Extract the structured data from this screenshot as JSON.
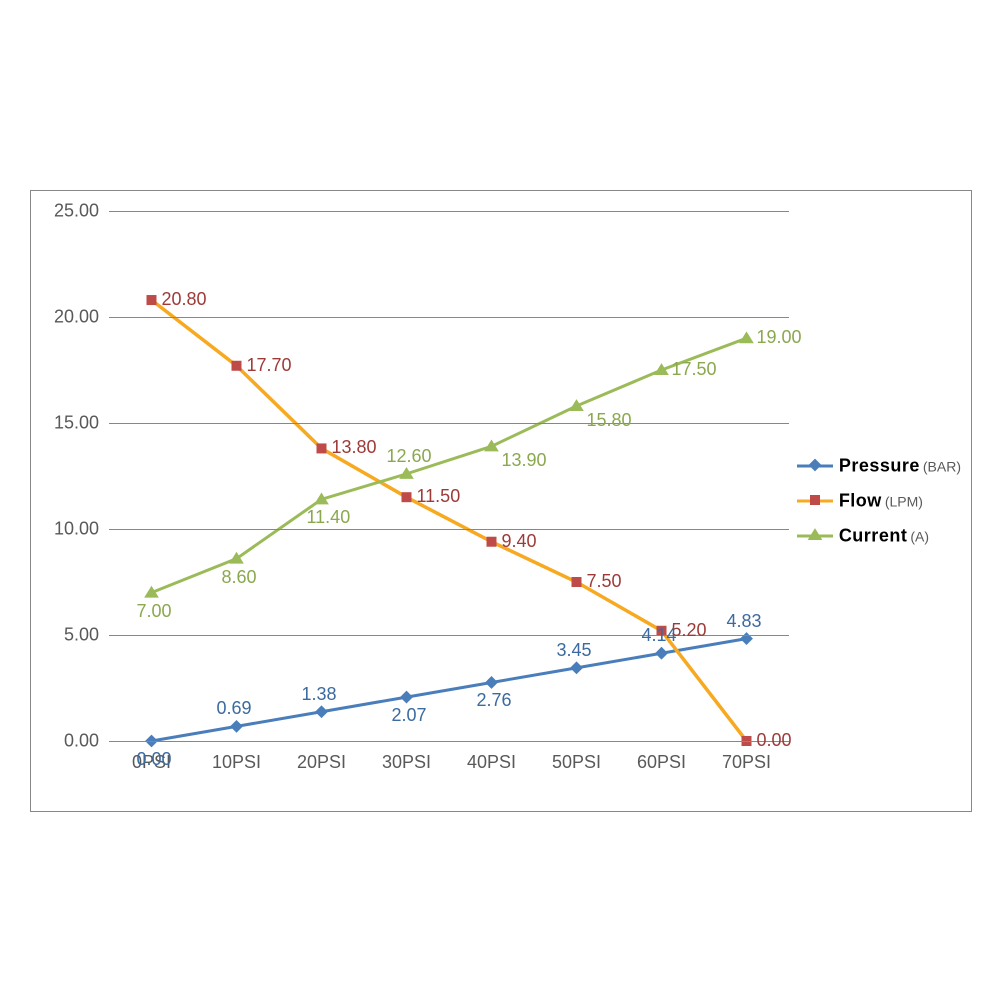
{
  "chart": {
    "type": "line",
    "background_color": "#ffffff",
    "border_color": "#878787",
    "grid_color": "#878787",
    "tick_font_color": "#595959",
    "tick_font_size": 18,
    "y": {
      "min": 0,
      "max": 25,
      "step": 5,
      "ticks": [
        "0.00",
        "5.00",
        "10.00",
        "15.00",
        "20.00",
        "25.00"
      ]
    },
    "x": {
      "categories": [
        "0PSI",
        "10PSI",
        "20PSI",
        "30PSI",
        "40PSI",
        "50PSI",
        "60PSI",
        "70PSI"
      ]
    },
    "series": [
      {
        "name": "Pressure",
        "unit": "(BAR)",
        "line_color": "#4a7ebb",
        "marker": "diamond",
        "marker_fill": "#4a7ebb",
        "label_color": "#3b6aa0",
        "line_width": 3,
        "marker_size": 9,
        "values": [
          0.0,
          0.69,
          1.38,
          2.07,
          2.76,
          3.45,
          4.14,
          4.83
        ],
        "labels": [
          "0.00",
          "0.69",
          "1.38",
          "2.07",
          "2.76",
          "3.45",
          "4.14",
          "4.83"
        ],
        "label_pos": [
          "below",
          "above",
          "above",
          "below",
          "below",
          "above",
          "above",
          "above"
        ]
      },
      {
        "name": "Flow",
        "unit": "(LPM)",
        "line_color": "#f6a921",
        "marker": "square",
        "marker_fill": "#be4b48",
        "label_color": "#9d3a38",
        "line_width": 3.5,
        "marker_size": 10,
        "values": [
          20.8,
          17.7,
          13.8,
          11.5,
          9.4,
          7.5,
          5.2,
          0.0
        ],
        "labels": [
          "20.80",
          "17.70",
          "13.80",
          "11.50",
          "9.40",
          "7.50",
          "5.20",
          "0.00"
        ],
        "label_pos": [
          "right",
          "right",
          "right",
          "right",
          "right",
          "right",
          "right",
          "right"
        ]
      },
      {
        "name": "Current",
        "unit": "(A)",
        "line_color": "#9bbb59",
        "marker": "triangle",
        "marker_fill": "#9bbb59",
        "label_color": "#8aa84e",
        "line_width": 3,
        "marker_size": 11,
        "values": [
          7.0,
          8.6,
          11.4,
          12.6,
          13.9,
          15.8,
          17.5,
          19.0
        ],
        "labels": [
          "7.00",
          "8.60",
          "11.40",
          "12.60",
          "13.90",
          "15.80",
          "17.50",
          "19.00"
        ],
        "label_pos": [
          "below",
          "below",
          "below",
          "above",
          "below-right",
          "below-right",
          "right",
          "right"
        ]
      }
    ]
  }
}
